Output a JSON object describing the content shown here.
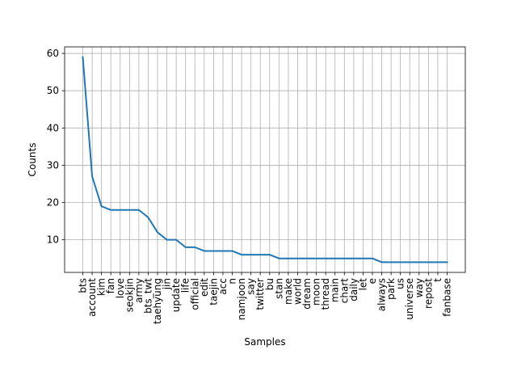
{
  "chart_data": {
    "type": "line",
    "title": "",
    "xlabel": "Samples",
    "ylabel": "Counts",
    "categories": [
      "bts",
      "account",
      "kim",
      "fan",
      "love",
      "seokjin",
      "army",
      "bts_twt",
      "taehyung",
      "jin",
      "update",
      "life",
      "official",
      "edit",
      "taejin",
      "acc",
      "n",
      "namjoon",
      "say",
      "twitter",
      "bu",
      "stan",
      "make",
      "world",
      "dream",
      "moon",
      "thread",
      "main",
      "chart",
      "daily",
      "let",
      "e",
      "always",
      "park",
      "us",
      "universe",
      "way",
      "repost",
      "t",
      "fanbase"
    ],
    "series": [
      {
        "values": [
          59,
          27,
          19,
          18,
          18,
          18,
          18,
          16,
          12,
          10,
          10,
          8,
          8,
          7,
          7,
          7,
          7,
          6,
          6,
          6,
          6,
          5,
          5,
          5,
          5,
          5,
          5,
          5,
          5,
          5,
          5,
          5,
          4,
          4,
          4,
          4,
          4,
          4,
          4,
          4
        ]
      }
    ],
    "ylim": [
      1.25,
      61.75
    ],
    "yticks": [
      10,
      20,
      30,
      40,
      50,
      60
    ],
    "grid": true,
    "line_color": "#1f77b4",
    "grid_color": "#b0b0b0"
  }
}
